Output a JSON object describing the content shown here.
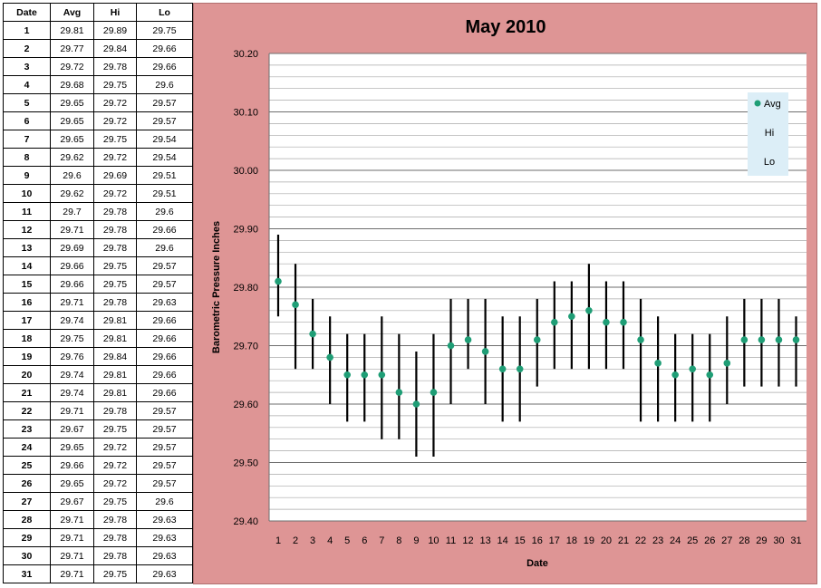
{
  "table": {
    "headers": [
      "Date",
      "Avg",
      "Hi",
      "Lo"
    ],
    "rows": [
      [
        "1",
        "29.81",
        "29.89",
        "29.75"
      ],
      [
        "2",
        "29.77",
        "29.84",
        "29.66"
      ],
      [
        "3",
        "29.72",
        "29.78",
        "29.66"
      ],
      [
        "4",
        "29.68",
        "29.75",
        "29.6"
      ],
      [
        "5",
        "29.65",
        "29.72",
        "29.57"
      ],
      [
        "6",
        "29.65",
        "29.72",
        "29.57"
      ],
      [
        "7",
        "29.65",
        "29.75",
        "29.54"
      ],
      [
        "8",
        "29.62",
        "29.72",
        "29.54"
      ],
      [
        "9",
        "29.6",
        "29.69",
        "29.51"
      ],
      [
        "10",
        "29.62",
        "29.72",
        "29.51"
      ],
      [
        "11",
        "29.7",
        "29.78",
        "29.6"
      ],
      [
        "12",
        "29.71",
        "29.78",
        "29.66"
      ],
      [
        "13",
        "29.69",
        "29.78",
        "29.6"
      ],
      [
        "14",
        "29.66",
        "29.75",
        "29.57"
      ],
      [
        "15",
        "29.66",
        "29.75",
        "29.57"
      ],
      [
        "16",
        "29.71",
        "29.78",
        "29.63"
      ],
      [
        "17",
        "29.74",
        "29.81",
        "29.66"
      ],
      [
        "18",
        "29.75",
        "29.81",
        "29.66"
      ],
      [
        "19",
        "29.76",
        "29.84",
        "29.66"
      ],
      [
        "20",
        "29.74",
        "29.81",
        "29.66"
      ],
      [
        "21",
        "29.74",
        "29.81",
        "29.66"
      ],
      [
        "22",
        "29.71",
        "29.78",
        "29.57"
      ],
      [
        "23",
        "29.67",
        "29.75",
        "29.57"
      ],
      [
        "24",
        "29.65",
        "29.72",
        "29.57"
      ],
      [
        "25",
        "29.66",
        "29.72",
        "29.57"
      ],
      [
        "26",
        "29.65",
        "29.72",
        "29.57"
      ],
      [
        "27",
        "29.67",
        "29.75",
        "29.6"
      ],
      [
        "28",
        "29.71",
        "29.78",
        "29.63"
      ],
      [
        "29",
        "29.71",
        "29.78",
        "29.63"
      ],
      [
        "30",
        "29.71",
        "29.78",
        "29.63"
      ],
      [
        "31",
        "29.71",
        "29.75",
        "29.63"
      ]
    ]
  },
  "chart_data": {
    "type": "scatter",
    "title": "May 2010",
    "xlabel": "Date",
    "ylabel": "Barometric Pressure Inches",
    "ylim": [
      29.4,
      30.2
    ],
    "ytick_labels": [
      "30.20",
      "30.10",
      "30.00",
      "29.90",
      "29.80",
      "29.70",
      "29.60",
      "29.50",
      "29.40"
    ],
    "x": [
      1,
      2,
      3,
      4,
      5,
      6,
      7,
      8,
      9,
      10,
      11,
      12,
      13,
      14,
      15,
      16,
      17,
      18,
      19,
      20,
      21,
      22,
      23,
      24,
      25,
      26,
      27,
      28,
      29,
      30,
      31
    ],
    "series": [
      {
        "name": "Avg",
        "values": [
          29.81,
          29.77,
          29.72,
          29.68,
          29.65,
          29.65,
          29.65,
          29.62,
          29.6,
          29.62,
          29.7,
          29.71,
          29.69,
          29.66,
          29.66,
          29.71,
          29.74,
          29.75,
          29.76,
          29.74,
          29.74,
          29.71,
          29.67,
          29.65,
          29.66,
          29.65,
          29.67,
          29.71,
          29.71,
          29.71,
          29.71
        ]
      },
      {
        "name": "Hi",
        "values": [
          29.89,
          29.84,
          29.78,
          29.75,
          29.72,
          29.72,
          29.75,
          29.72,
          29.69,
          29.72,
          29.78,
          29.78,
          29.78,
          29.75,
          29.75,
          29.78,
          29.81,
          29.81,
          29.84,
          29.81,
          29.81,
          29.78,
          29.75,
          29.72,
          29.72,
          29.72,
          29.75,
          29.78,
          29.78,
          29.78,
          29.75
        ]
      },
      {
        "name": "Lo",
        "values": [
          29.75,
          29.66,
          29.66,
          29.6,
          29.57,
          29.57,
          29.54,
          29.54,
          29.51,
          29.51,
          29.6,
          29.66,
          29.6,
          29.57,
          29.57,
          29.63,
          29.66,
          29.66,
          29.66,
          29.66,
          29.66,
          29.57,
          29.57,
          29.57,
          29.57,
          29.57,
          29.6,
          29.63,
          29.63,
          29.63,
          29.63
        ]
      }
    ],
    "grid": true,
    "legend": "right",
    "colors": {
      "avg_marker": "#1f9e76",
      "range_line": "#000000",
      "chart_background": "#de9595",
      "plot_background": "#ffffff",
      "legend_background": "#dceef7"
    }
  }
}
